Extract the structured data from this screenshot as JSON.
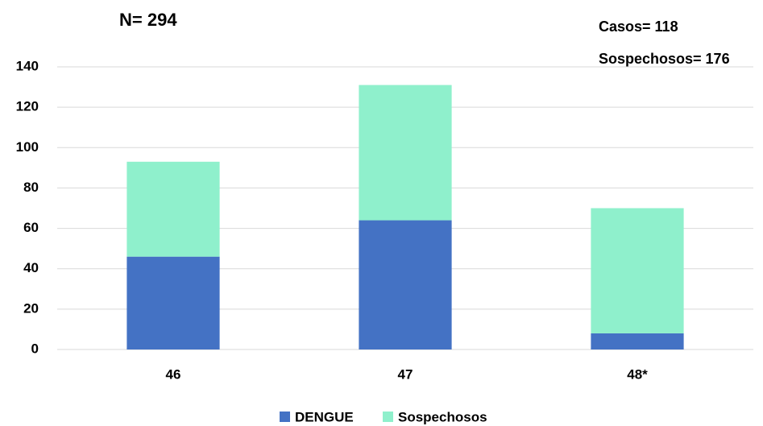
{
  "chart_data": {
    "type": "stacked_bar",
    "title": "N= 294",
    "annotations": [
      "Casos= 118",
      "Sospechosos= 176"
    ],
    "categories": [
      "46",
      "47",
      "48*"
    ],
    "series": [
      {
        "name": "DENGUE",
        "color": "#4472c4",
        "values": [
          46,
          64,
          8
        ]
      },
      {
        "name": "Sospechosos",
        "color": "#8ff0cc",
        "values": [
          47,
          67,
          62
        ]
      }
    ],
    "ylim": [
      0,
      140
    ],
    "yticks": [
      0,
      20,
      40,
      60,
      80,
      100,
      120,
      140
    ],
    "grid": true
  }
}
